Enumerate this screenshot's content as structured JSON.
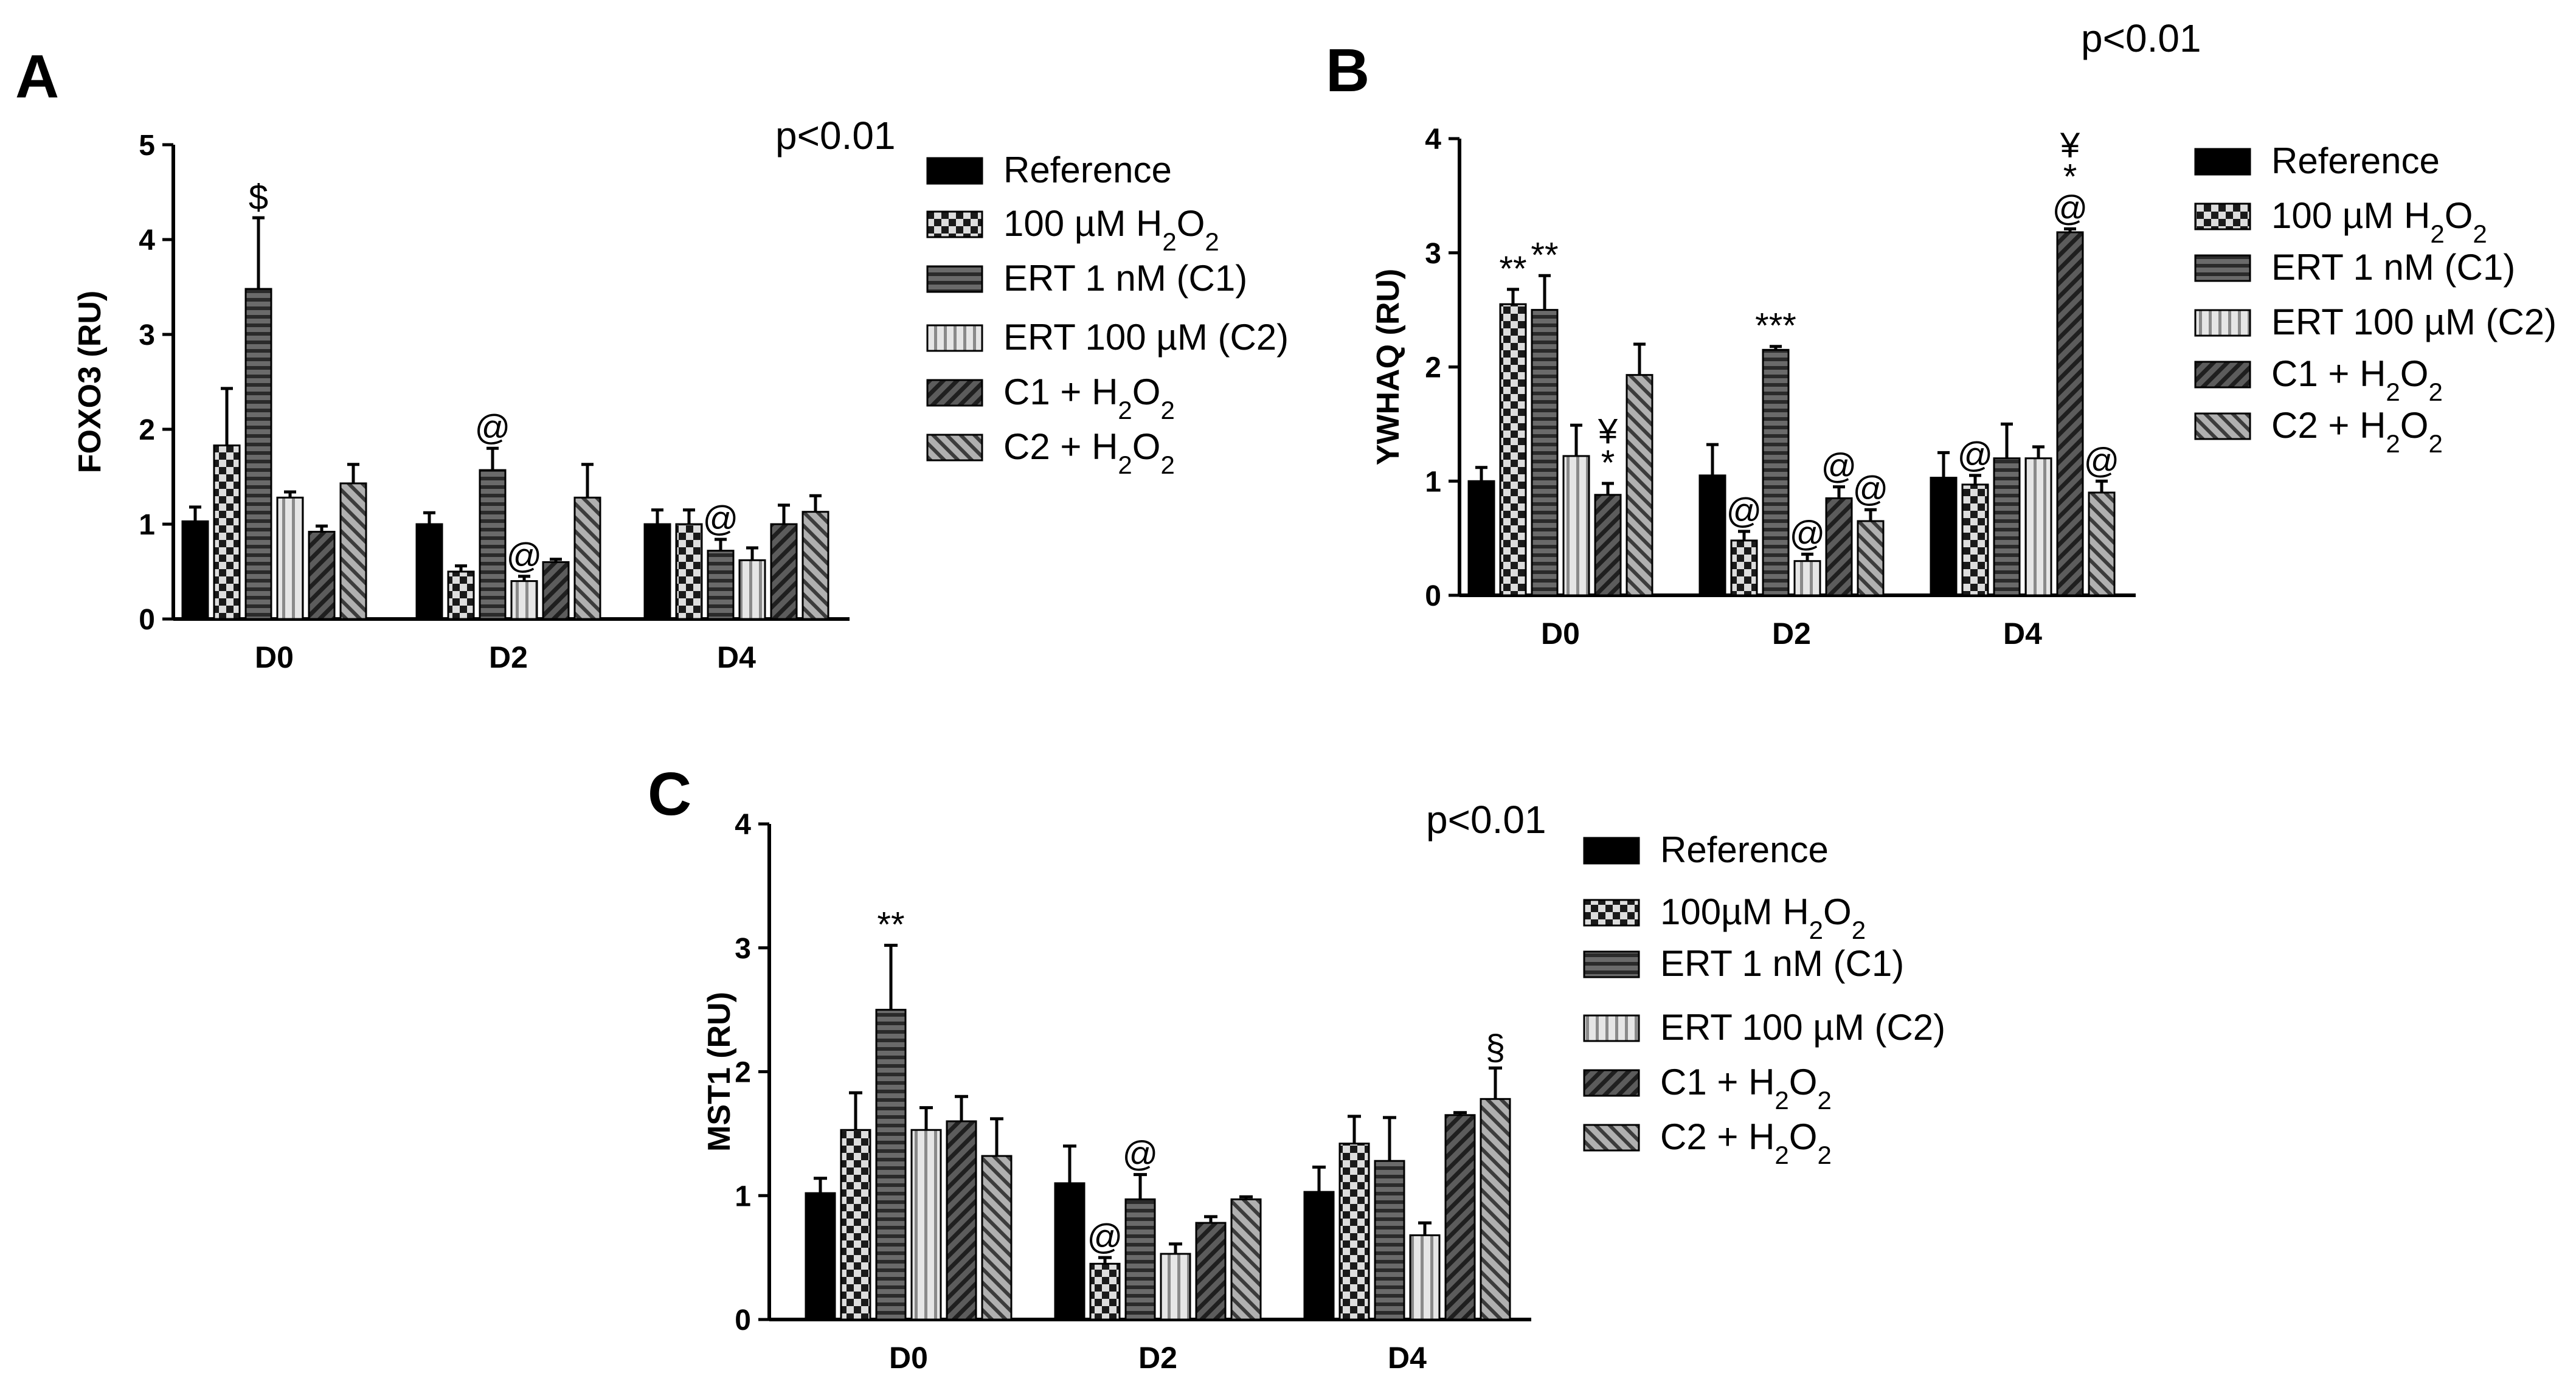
{
  "chart_data": [
    {
      "type": "bar",
      "panel": "A",
      "ylabel": "FOXO3 (RU)",
      "ylim": [
        0,
        5
      ],
      "yticks": [
        0,
        1,
        2,
        3,
        4,
        5
      ],
      "categories": [
        "D0",
        "D2",
        "D4"
      ],
      "pvalue": "p<0.01",
      "series": [
        {
          "key": "ref",
          "name": "Reference",
          "values": [
            1.03,
            1.0,
            1.0
          ],
          "errors": [
            0.15,
            0.12,
            0.15
          ],
          "annotations": [
            "",
            "",
            ""
          ]
        },
        {
          "key": "h2o2",
          "name": "100 µM H2O2",
          "values": [
            1.83,
            0.5,
            1.0
          ],
          "errors": [
            0.6,
            0.06,
            0.15
          ],
          "annotations": [
            "",
            "",
            ""
          ]
        },
        {
          "key": "c1",
          "name": "ERT 1 nM (C1)",
          "values": [
            3.48,
            1.57,
            0.72
          ],
          "errors": [
            0.75,
            0.23,
            0.12
          ],
          "annotations": [
            "$",
            "@",
            "@"
          ]
        },
        {
          "key": "c2",
          "name": "ERT 100 µM (C2)",
          "values": [
            1.28,
            0.4,
            0.62
          ],
          "errors": [
            0.06,
            0.05,
            0.13
          ],
          "annotations": [
            "",
            "@",
            ""
          ]
        },
        {
          "key": "c1h",
          "name": "C1 + H2O2",
          "values": [
            0.92,
            0.6,
            1.0
          ],
          "errors": [
            0.06,
            0.03,
            0.2
          ],
          "annotations": [
            "",
            "",
            ""
          ]
        },
        {
          "key": "c2h",
          "name": "C2 + H2O2",
          "values": [
            1.43,
            1.28,
            1.13
          ],
          "errors": [
            0.2,
            0.35,
            0.17
          ],
          "annotations": [
            "",
            "",
            ""
          ]
        }
      ]
    },
    {
      "type": "bar",
      "panel": "B",
      "ylabel": "YWHAQ (RU)",
      "ylim": [
        0,
        4
      ],
      "yticks": [
        0,
        1,
        2,
        3,
        4
      ],
      "categories": [
        "D0",
        "D2",
        "D4"
      ],
      "pvalue": "p<0.01",
      "series": [
        {
          "key": "ref",
          "name": "Reference",
          "values": [
            1.0,
            1.05,
            1.03
          ],
          "errors": [
            0.12,
            0.27,
            0.22
          ],
          "annotations": [
            "",
            "",
            ""
          ]
        },
        {
          "key": "h2o2",
          "name": "100 µM H2O2",
          "values": [
            2.55,
            0.48,
            0.97
          ],
          "errors": [
            0.13,
            0.08,
            0.08
          ],
          "annotations": [
            "**",
            "@",
            "@"
          ]
        },
        {
          "key": "c1",
          "name": "ERT 1 nM (C1)",
          "values": [
            2.5,
            2.15,
            1.2
          ],
          "errors": [
            0.3,
            0.03,
            0.3
          ],
          "annotations": [
            "**",
            "***",
            ""
          ]
        },
        {
          "key": "c2",
          "name": "ERT 100 µM (C2)",
          "values": [
            1.22,
            0.3,
            1.2
          ],
          "errors": [
            0.27,
            0.06,
            0.1
          ],
          "annotations": [
            "",
            "@",
            ""
          ]
        },
        {
          "key": "c1h",
          "name": "C1 + H2O2",
          "values": [
            0.88,
            0.85,
            3.18
          ],
          "errors": [
            0.1,
            0.1,
            0.03
          ],
          "annotations": [
            "¥ *",
            "@",
            "¥ * @"
          ]
        },
        {
          "key": "c2h",
          "name": "C2 + H2O2",
          "values": [
            1.93,
            0.65,
            0.9
          ],
          "errors": [
            0.27,
            0.1,
            0.1
          ],
          "annotations": [
            "",
            "@",
            "@"
          ]
        }
      ]
    },
    {
      "type": "bar",
      "panel": "C",
      "ylabel": "MST1 (RU)",
      "ylim": [
        0,
        4
      ],
      "yticks": [
        0,
        1,
        2,
        3,
        4
      ],
      "categories": [
        "D0",
        "D2",
        "D4"
      ],
      "pvalue": "p<0.01",
      "series": [
        {
          "key": "ref",
          "name": "Reference",
          "values": [
            1.02,
            1.1,
            1.03
          ],
          "errors": [
            0.12,
            0.3,
            0.2
          ],
          "annotations": [
            "",
            "",
            ""
          ]
        },
        {
          "key": "h2o2",
          "name": "100µM H2O2",
          "values": [
            1.53,
            0.45,
            1.42
          ],
          "errors": [
            0.3,
            0.05,
            0.22
          ],
          "annotations": [
            "",
            "@",
            ""
          ]
        },
        {
          "key": "c1",
          "name": "ERT 1 nM (C1)",
          "values": [
            2.5,
            0.97,
            1.28
          ],
          "errors": [
            0.52,
            0.2,
            0.35
          ],
          "annotations": [
            "**",
            "@",
            ""
          ]
        },
        {
          "key": "c2",
          "name": "ERT 100 µM (C2)",
          "values": [
            1.53,
            0.53,
            0.68
          ],
          "errors": [
            0.18,
            0.08,
            0.1
          ],
          "annotations": [
            "",
            "",
            ""
          ]
        },
        {
          "key": "c1h",
          "name": "C1 + H2O2",
          "values": [
            1.6,
            0.78,
            1.65
          ],
          "errors": [
            0.2,
            0.05,
            0.02
          ],
          "annotations": [
            "",
            "",
            ""
          ]
        },
        {
          "key": "c2h",
          "name": "C2 + H2O2",
          "values": [
            1.32,
            0.97,
            1.78
          ],
          "errors": [
            0.3,
            0.02,
            0.25
          ],
          "annotations": [
            "",
            "",
            "§"
          ]
        }
      ]
    }
  ],
  "colors": {
    "ref": "#000000",
    "h2o2": "#2b2b2b",
    "c1": "#5a5a5a",
    "c2": "#d9d9d9",
    "c1h": "#3a3a3a",
    "c2h": "#7a7a7a"
  },
  "icons": {
    "h2o2": "checker-pattern-swatch",
    "c1": "horizontal-stripe-swatch",
    "c2": "vertical-stripe-swatch",
    "c1h": "diagonal-stripe-swatch",
    "c2h": "reverse-diagonal-stripe-swatch"
  }
}
